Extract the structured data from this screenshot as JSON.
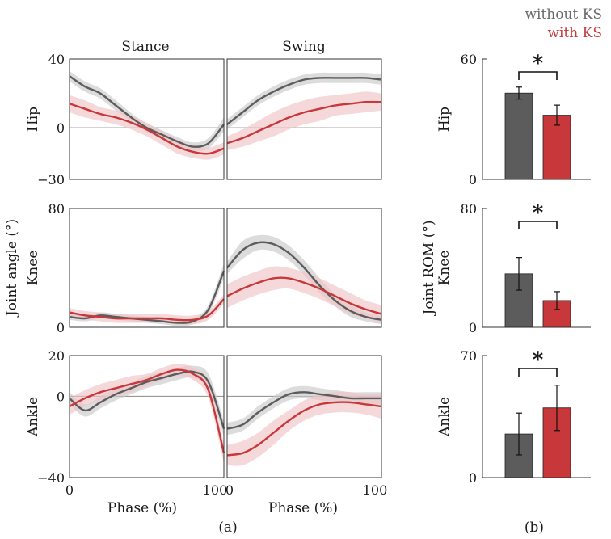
{
  "colors": {
    "without_ks": "#5c5c5c",
    "with_ks": "#c8373a",
    "without_ks_band": "#c9c9c9",
    "with_ks_band": "#f0c4c6",
    "zero_line": "#8a8a8a",
    "axis": "#333333"
  },
  "legend": {
    "without_ks": "without KS",
    "with_ks": "with KS"
  },
  "chart_data": [
    {
      "id": "joint-angle",
      "type": "line",
      "panel_label": "(a)",
      "ylabel": "Joint angle (°)",
      "xlabel": "Phase (%)",
      "columns": [
        "Stance",
        "Swing"
      ],
      "xlim": [
        0,
        100
      ],
      "x_ticks": [
        "0",
        "100"
      ],
      "x": [
        0,
        10,
        20,
        30,
        40,
        50,
        60,
        70,
        80,
        90,
        100
      ],
      "rows": [
        {
          "label": "Hip",
          "ylim": [
            -30,
            40
          ],
          "y_ticks": [
            "40",
            "0",
            "−30"
          ],
          "stance": {
            "without_ks": {
              "mean": [
                30,
                24,
                20,
                13,
                6,
                0,
                -4,
                -8,
                -11,
                -9,
                2
              ],
              "sd": [
                3,
                3,
                3,
                3,
                2.5,
                2.5,
                2.5,
                2.5,
                2.5,
                3,
                4
              ]
            },
            "with_ks": {
              "mean": [
                14,
                11,
                8,
                6,
                3,
                -1,
                -6,
                -11,
                -14,
                -15,
                -12
              ],
              "sd": [
                5,
                5,
                4,
                4,
                4,
                4,
                4,
                4,
                3.5,
                3.5,
                3.5
              ]
            }
          },
          "swing": {
            "without_ks": {
              "mean": [
                2,
                9,
                16,
                21,
                25,
                28,
                29,
                29,
                29,
                29,
                28
              ],
              "sd": [
                3,
                3,
                3,
                3,
                3,
                3,
                3,
                3,
                3,
                3,
                3
              ]
            },
            "with_ks": {
              "mean": [
                -9,
                -6,
                -2,
                2,
                6,
                9,
                11,
                13,
                14,
                15,
                15
              ],
              "sd": [
                4,
                5,
                6,
                7,
                7,
                7,
                7,
                6,
                6,
                6,
                5
              ]
            }
          }
        },
        {
          "label": "Knee",
          "ylim": [
            0,
            80
          ],
          "y_ticks": [
            "80",
            "",
            "0"
          ],
          "stance": {
            "without_ks": {
              "mean": [
                7,
                6,
                8,
                7,
                6,
                5,
                4,
                3,
                4,
                12,
                38
              ],
              "sd": [
                2,
                2,
                2,
                2,
                2,
                2,
                2,
                2,
                2,
                3,
                5
              ]
            },
            "with_ks": {
              "mean": [
                10,
                8,
                7,
                6,
                6,
                6,
                6,
                5,
                5,
                8,
                19
              ],
              "sd": [
                3,
                3,
                3,
                3,
                3,
                3,
                3,
                3,
                3,
                3,
                3
              ]
            }
          },
          "swing": {
            "without_ks": {
              "mean": [
                40,
                52,
                57,
                56,
                50,
                40,
                28,
                18,
                11,
                7,
                5
              ],
              "sd": [
                4,
                6,
                5,
                5,
                5,
                5,
                5,
                4,
                4,
                3,
                3
              ]
            },
            "with_ks": {
              "mean": [
                21,
                26,
                30,
                33,
                33,
                30,
                26,
                21,
                16,
                12,
                9
              ],
              "sd": [
                8,
                8,
                8,
                8,
                7,
                7,
                7,
                7,
                7,
                6,
                6
              ]
            }
          }
        },
        {
          "label": "Ankle",
          "ylim": [
            -40,
            20
          ],
          "y_ticks": [
            "20",
            "0",
            "−40"
          ],
          "stance": {
            "without_ks": {
              "mean": [
                -1,
                -7,
                -3,
                1,
                4,
                7,
                9,
                11,
                12,
                7,
                -16
              ],
              "sd": [
                3,
                3,
                3,
                3,
                3,
                3,
                3,
                3,
                3,
                4,
                4
              ]
            },
            "with_ks": {
              "mean": [
                -5,
                -1,
                2,
                4,
                6,
                8,
                11,
                13,
                11,
                3,
                -28
              ],
              "sd": [
                4,
                4,
                4,
                4,
                4,
                3,
                3,
                3,
                3,
                4,
                5
              ]
            }
          },
          "swing": {
            "without_ks": {
              "mean": [
                -16,
                -14,
                -8,
                -3,
                1,
                2,
                1,
                0,
                -1,
                -1,
                -1
              ],
              "sd": [
                3,
                3,
                3,
                3,
                3,
                3,
                3,
                3,
                3,
                3,
                3
              ]
            },
            "with_ks": {
              "mean": [
                -29,
                -28,
                -24,
                -18,
                -12,
                -7,
                -4,
                -3,
                -3,
                -4,
                -5
              ],
              "sd": [
                5,
                6,
                6,
                6,
                5,
                5,
                5,
                5,
                5,
                5,
                6
              ]
            }
          }
        }
      ]
    },
    {
      "id": "joint-rom",
      "type": "bar",
      "panel_label": "(b)",
      "ylabel": "Joint ROM (°)",
      "categories": [
        "without KS",
        "with KS"
      ],
      "rows": [
        {
          "label": "Hip",
          "ylim": [
            0,
            60
          ],
          "y_ticks": [
            "60",
            "0"
          ],
          "values": [
            43,
            32
          ],
          "errors": [
            3,
            5
          ],
          "significance": "*"
        },
        {
          "label": "Knee",
          "ylim": [
            0,
            80
          ],
          "y_ticks": [
            "80",
            "0"
          ],
          "values": [
            36,
            18
          ],
          "errors": [
            11,
            6
          ],
          "significance": "*"
        },
        {
          "label": "Ankle",
          "ylim": [
            0,
            70
          ],
          "y_ticks": [
            "70",
            "0"
          ],
          "values": [
            25,
            40
          ],
          "errors": [
            12,
            13
          ],
          "significance": "*"
        }
      ]
    }
  ]
}
